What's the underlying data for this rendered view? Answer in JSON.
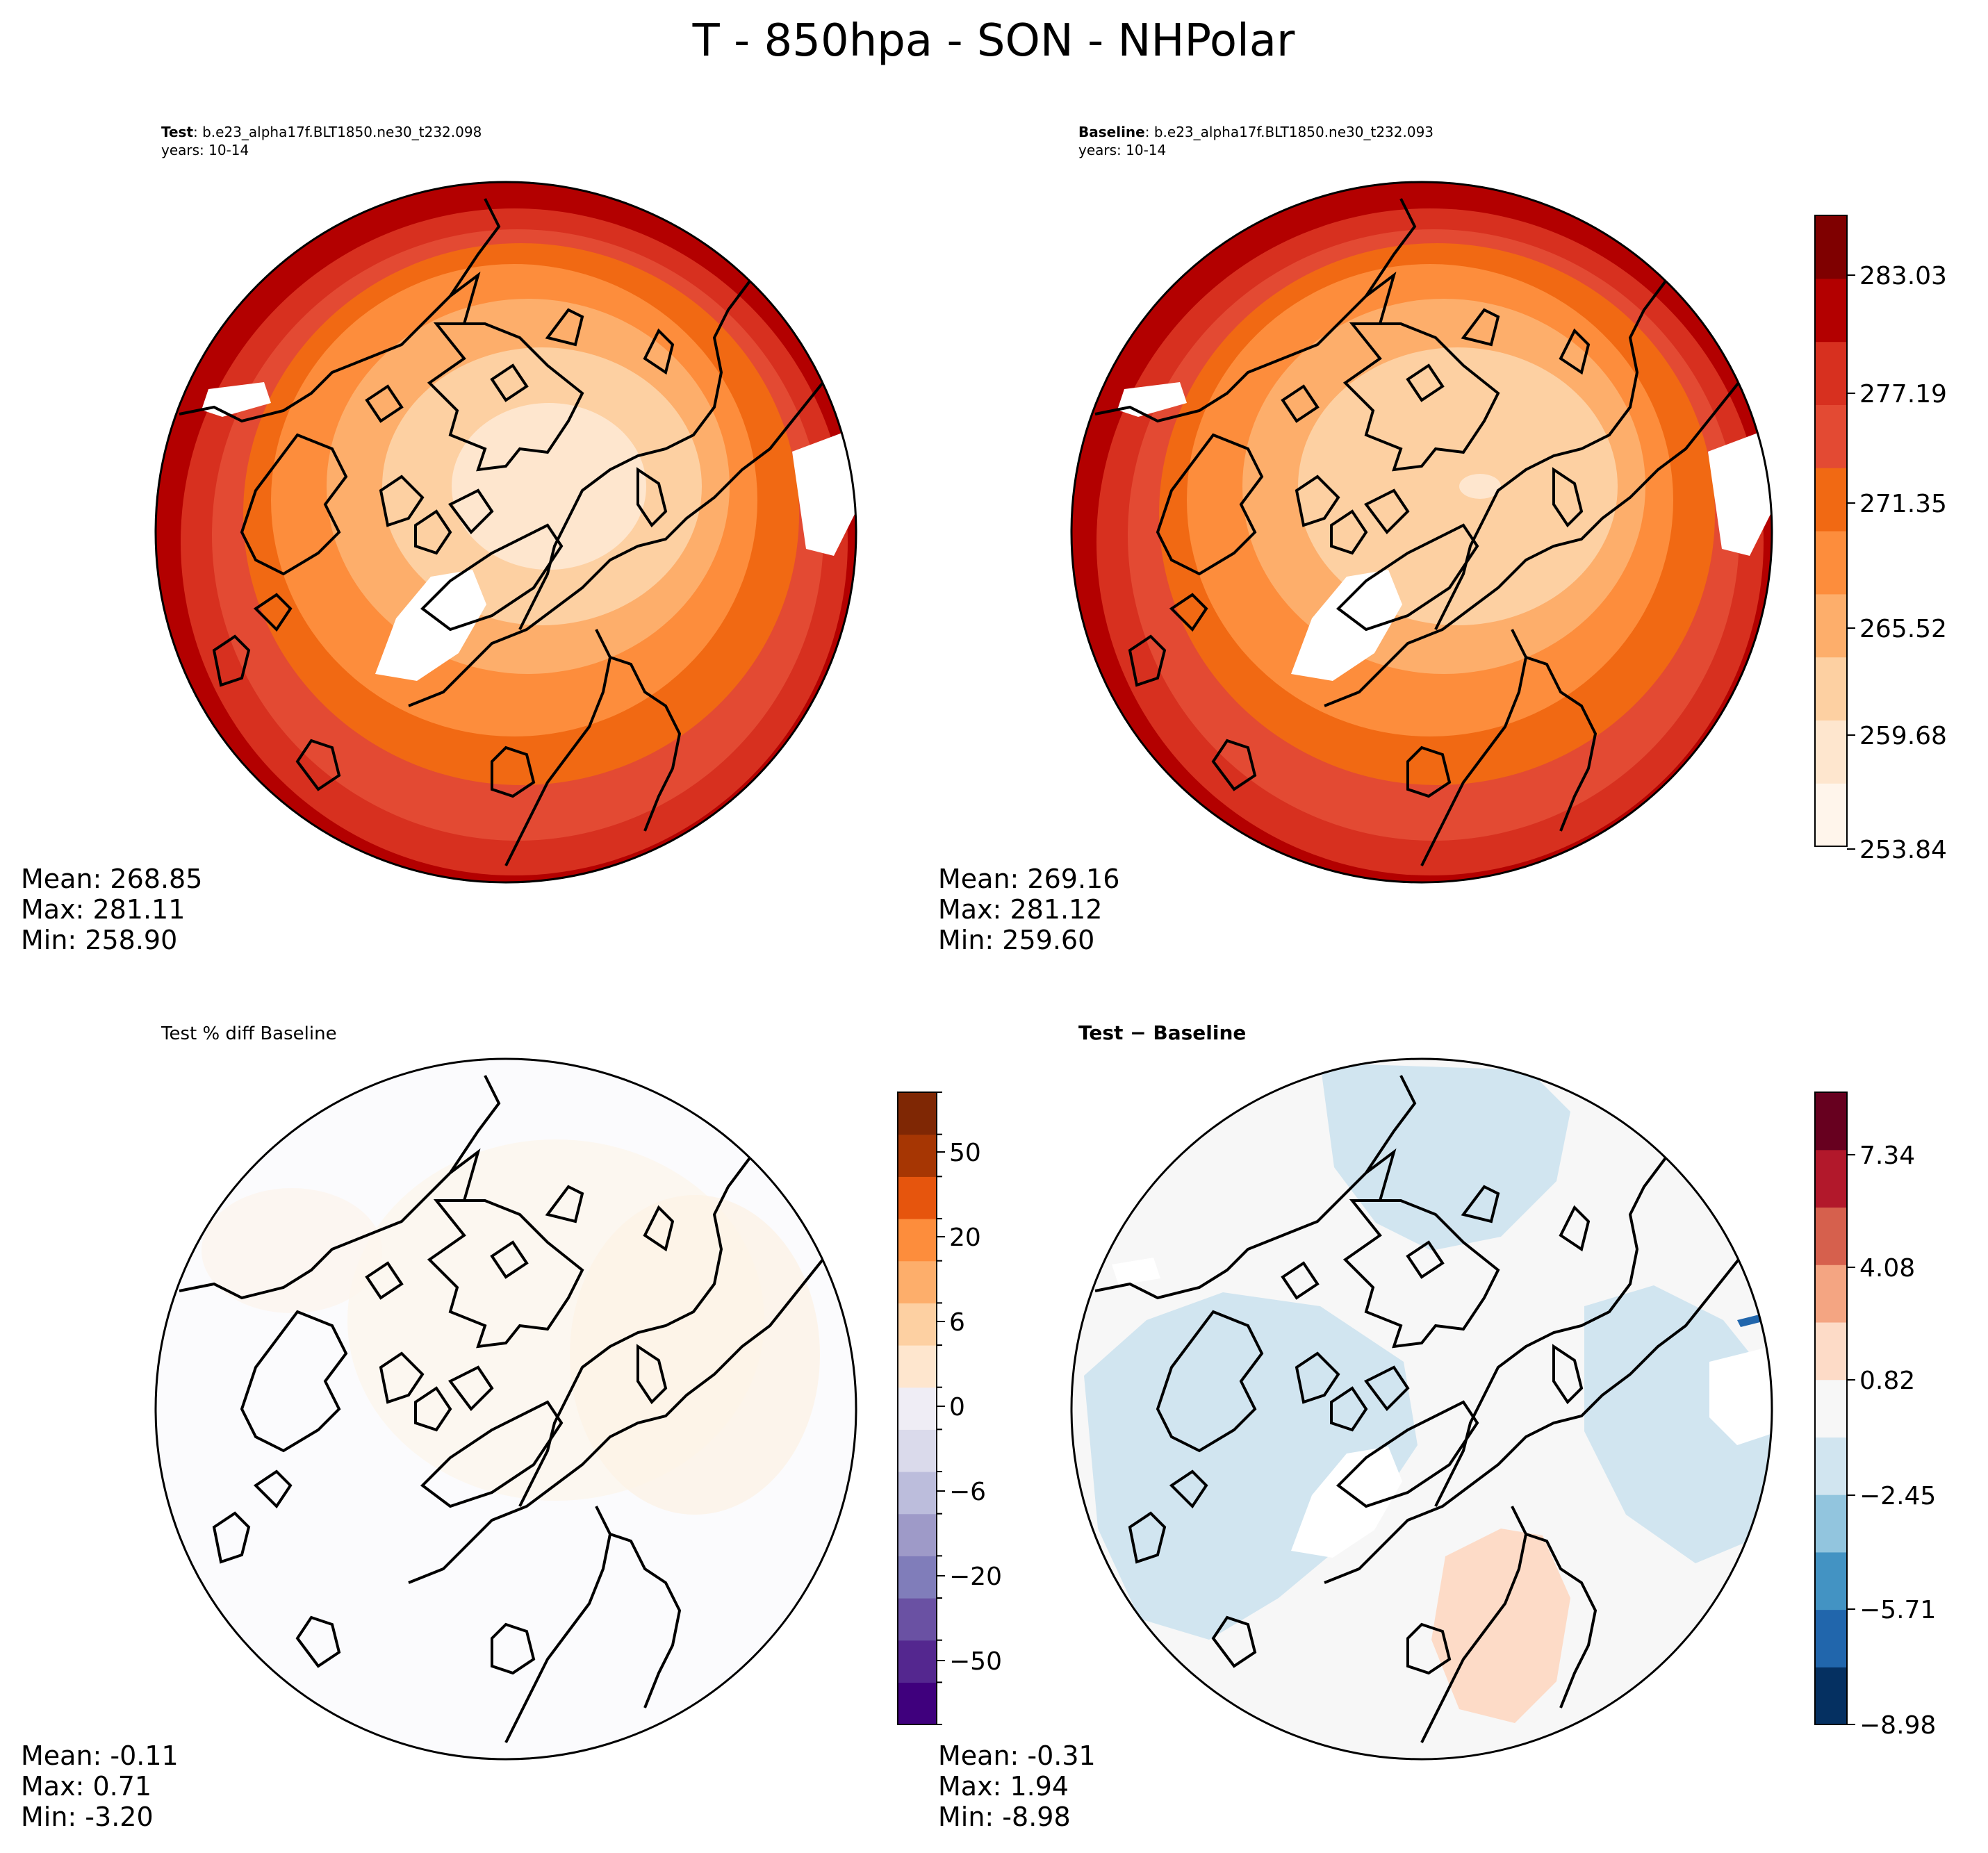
{
  "figure": {
    "title": "T - 850hpa - SON - NHPolar"
  },
  "panels": [
    {
      "id": "test",
      "label_bold": "Test",
      "label_rest": ": b.e23_alpha17f.BLT1850.ne30_t232.098",
      "subtitle": "years: 10-14",
      "stats": {
        "mean": "Mean: 268.85",
        "max": "Max: 281.11",
        "min": "Min: 258.90"
      }
    },
    {
      "id": "baseline",
      "label_bold": "Baseline",
      "label_rest": ": b.e23_alpha17f.BLT1850.ne30_t232.093",
      "subtitle": "years: 10-14",
      "stats": {
        "mean": "Mean: 269.16",
        "max": "Max: 281.12",
        "min": "Min: 259.60"
      }
    },
    {
      "id": "pctdiff",
      "label": "Test % diff Baseline",
      "stats": {
        "mean": "Mean: -0.11",
        "max": "Max:  0.71",
        "min": "Min: -3.20"
      }
    },
    {
      "id": "diff",
      "label": "Test − Baseline",
      "stats": {
        "mean": "Mean: -0.31",
        "max": "Max:  1.94",
        "min": "Min: -8.98"
      }
    }
  ],
  "chart_data": [
    {
      "type": "heatmap",
      "title": "T - 850hpa - SON - NHPolar",
      "colorbar": "temperature",
      "tick_labels": [
        "283.03",
        "277.19",
        "271.35",
        "265.52",
        "259.68",
        "253.84"
      ],
      "range": [
        253.84,
        286.0
      ],
      "colors": [
        "#fff5eb",
        "#fee6ce",
        "#fdd0a2",
        "#fdae6b",
        "#fd8d3c",
        "#f16913",
        "#e34a33",
        "#d7301f",
        "#b30000",
        "#7f0000"
      ]
    },
    {
      "type": "heatmap",
      "colorbar": "percent_difference",
      "tick_labels": [
        "50",
        "20",
        "6",
        "0",
        "−6",
        "−20",
        "−50"
      ],
      "colors": [
        "#3f007d",
        "#54278f",
        "#6a51a3",
        "#807dba",
        "#9e9ac8",
        "#bcbddc",
        "#dadaeb",
        "#efedf5",
        "#fee6ce",
        "#fdd0a2",
        "#fdae6b",
        "#fd8d3c",
        "#e6550d",
        "#a63603",
        "#7f2704"
      ]
    },
    {
      "type": "heatmap",
      "colorbar": "difference",
      "tick_labels": [
        "7.34",
        "4.08",
        "0.82",
        "−2.45",
        "−5.71",
        "−8.98"
      ],
      "range": [
        -8.98,
        8.98
      ],
      "colors": [
        "#053061",
        "#2166ac",
        "#4393c3",
        "#92c5de",
        "#d1e5f0",
        "#f7f7f7",
        "#fddbc7",
        "#f4a582",
        "#d6604d",
        "#b2182b",
        "#67001f"
      ]
    }
  ]
}
